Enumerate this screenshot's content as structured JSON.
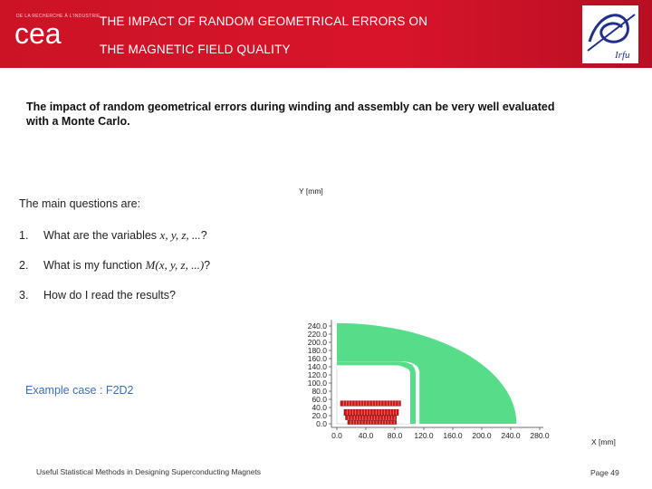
{
  "header": {
    "institution_line": "DE LA RECHERCHE À L'INDUSTRIE",
    "logo_text": "cea",
    "title_line1": "The impact of random geometrical errors on",
    "title_line2": "the magnetic field quality",
    "right_logo_text": "Irfu",
    "colors": {
      "bar": "#d0142a",
      "text": "#ffffff",
      "logo_blue": "#1f2f8a"
    }
  },
  "intro": "The impact of random geometrical errors during winding and assembly can be very well evaluated with a Monte Carlo.",
  "questions": {
    "heading": "The main questions are:",
    "items": [
      {
        "num": "1.",
        "pre": "What are the variables ",
        "math": "x, y, z, ...",
        "post": "?"
      },
      {
        "num": "2.",
        "pre": "What is my function ",
        "math": "M(x, y, z, ...)",
        "post": "?"
      },
      {
        "num": "3.",
        "pre": "How do I read the results?",
        "math": "",
        "post": ""
      }
    ]
  },
  "example": "Example case : F2D2",
  "footer": "Useful Statistical Methods in Designing Superconducting Magnets",
  "page": "Page 49",
  "chart_data": {
    "type": "diagram",
    "ylabel": "Y [mm]",
    "xlabel": "X [mm]",
    "y_ticks": [
      "240.0",
      "220.0",
      "200.0",
      "180.0",
      "160.0",
      "140.0",
      "120.0",
      "100.0",
      "80.0",
      "60.0",
      "40.0",
      "20.0",
      "0.0"
    ],
    "x_ticks": [
      "0.0",
      "40.0",
      "80.0",
      "120.0",
      "160.0",
      "200.0",
      "240.0",
      "280.0"
    ],
    "xlim": [
      0,
      280
    ],
    "ylim": [
      0,
      240
    ],
    "colors": {
      "iron": "#57dd8a",
      "coil": "#d01818",
      "axis": "#444444"
    }
  }
}
